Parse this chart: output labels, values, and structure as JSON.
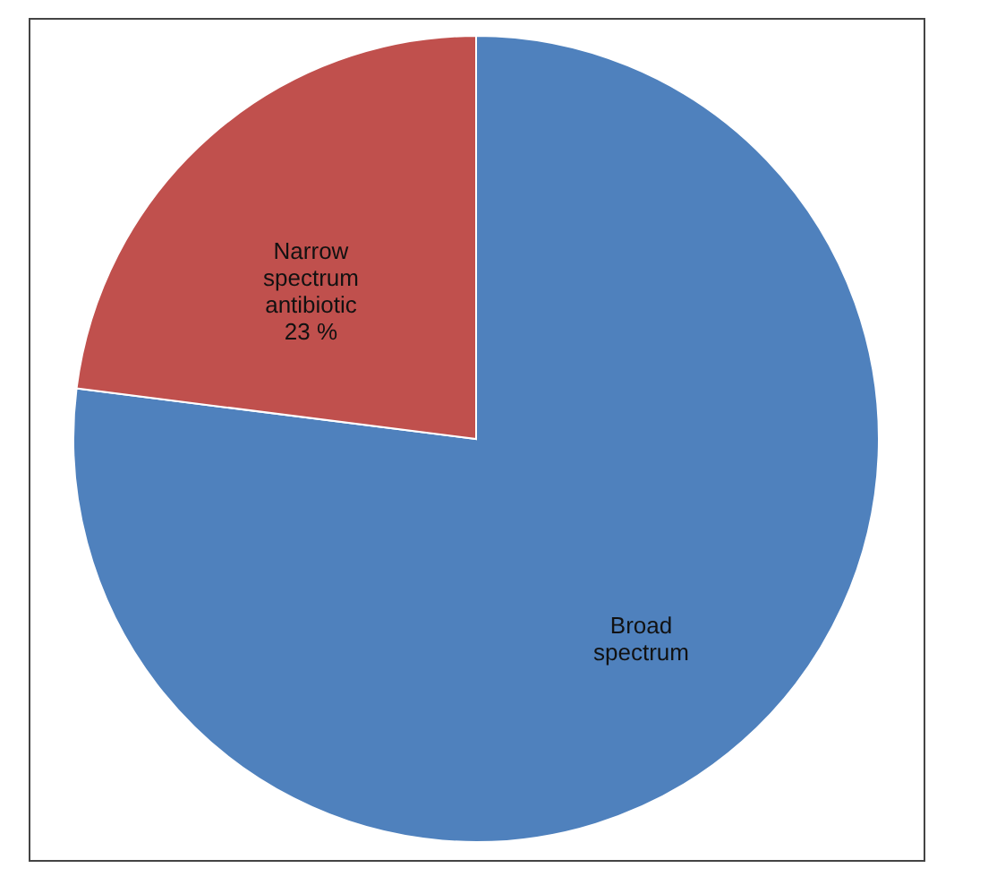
{
  "chart_data": {
    "type": "pie",
    "categories": [
      "Broad spectrum",
      "Narrow spectrum antibiotic"
    ],
    "values": [
      77,
      23
    ],
    "colors": [
      "#4f81bd",
      "#c0504d"
    ],
    "value_labels": [
      null,
      "23 %"
    ],
    "legend": false
  }
}
